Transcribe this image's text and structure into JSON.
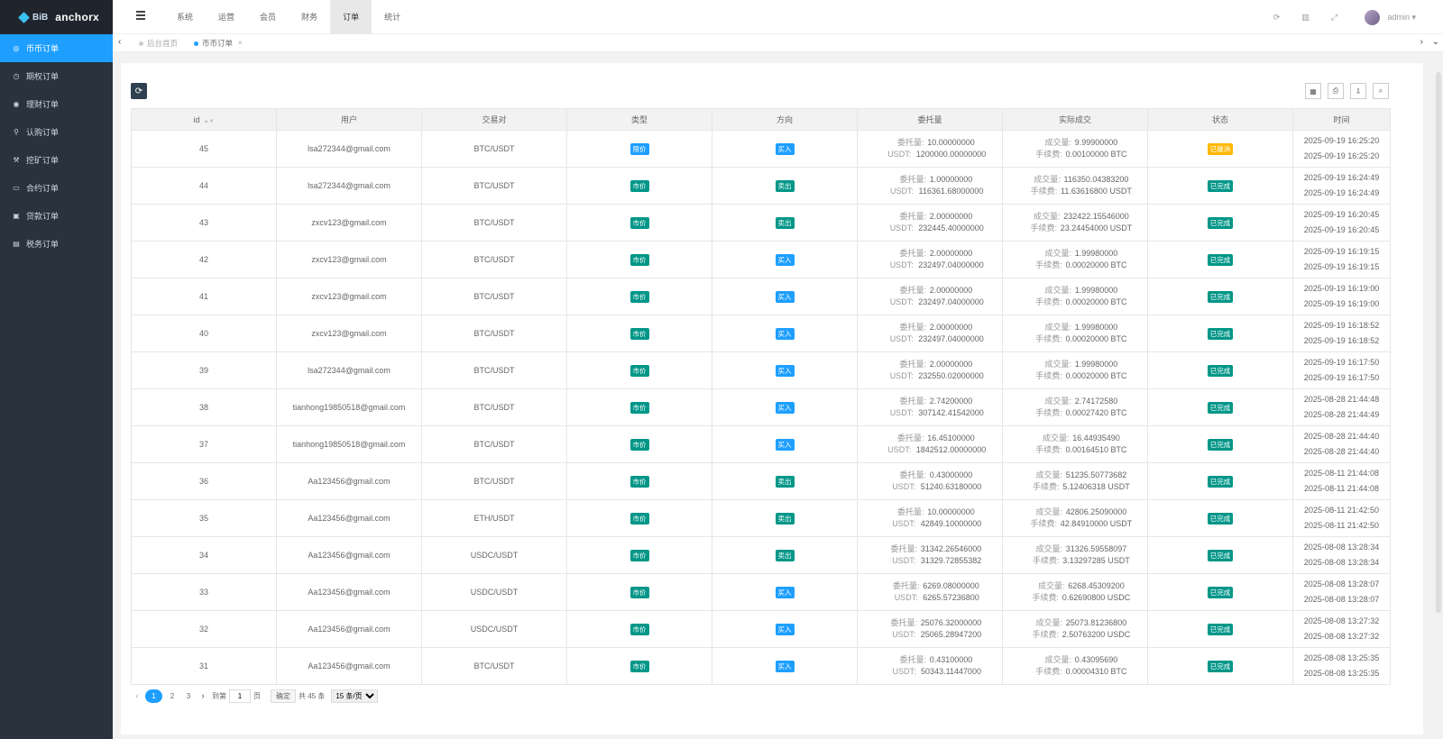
{
  "logo": {
    "mark": "BiB",
    "name": "anchorx"
  },
  "sidebar": {
    "items": [
      {
        "label": "币币订单",
        "icon": "coin-icon",
        "glyph": "◎"
      },
      {
        "label": "期权订单",
        "icon": "clock-icon",
        "glyph": "◷"
      },
      {
        "label": "理财订单",
        "icon": "finance-icon",
        "glyph": "◉"
      },
      {
        "label": "认购订单",
        "icon": "person-icon",
        "glyph": "⚲"
      },
      {
        "label": "挖矿订单",
        "icon": "mining-icon",
        "glyph": "⚒"
      },
      {
        "label": "合约订单",
        "icon": "monitor-icon",
        "glyph": "▭"
      },
      {
        "label": "贷款订单",
        "icon": "loan-icon",
        "glyph": "▣"
      },
      {
        "label": "税务订单",
        "icon": "tax-icon",
        "glyph": "▤"
      }
    ]
  },
  "topnav": [
    "系统",
    "运营",
    "会员",
    "财务",
    "订单",
    "统计"
  ],
  "header": {
    "user": "admin ▾"
  },
  "tabs": {
    "home": "后台首页",
    "current": "币币订单",
    "close": "×"
  },
  "table": {
    "columns": [
      "id",
      "用户",
      "交易对",
      "类型",
      "方向",
      "委托量",
      "实际成交",
      "状态",
      "时间"
    ],
    "keys": {
      "entrust": "委托量:",
      "usdt": "USDT:",
      "filled": "成交量:",
      "fee": "手续费:"
    },
    "rows": [
      {
        "id": "45",
        "user": "lsa272344@gmail.com",
        "pair": "BTC/USDT",
        "type": "限价",
        "dir": "买入",
        "e1": "10.00000000",
        "e2": "1200000.00000000",
        "f1": "9.99900000",
        "f2": "0.00100000 BTC",
        "status": "已撤消",
        "t1": "2025-09-19 16:25:20",
        "t2": "2025-09-19 16:25:20"
      },
      {
        "id": "44",
        "user": "lsa272344@gmail.com",
        "pair": "BTC/USDT",
        "type": "市价",
        "dir": "卖出",
        "e1": "1.00000000",
        "e2": "116361.68000000",
        "f1": "116350.04383200",
        "f2": "11.63616800 USDT",
        "status": "已完成",
        "t1": "2025-09-19 16:24:49",
        "t2": "2025-09-19 16:24:49"
      },
      {
        "id": "43",
        "user": "zxcv123@gmail.com",
        "pair": "BTC/USDT",
        "type": "市价",
        "dir": "卖出",
        "e1": "2.00000000",
        "e2": "232445.40000000",
        "f1": "232422.15546000",
        "f2": "23.24454000 USDT",
        "status": "已完成",
        "t1": "2025-09-19 16:20:45",
        "t2": "2025-09-19 16:20:45"
      },
      {
        "id": "42",
        "user": "zxcv123@gmail.com",
        "pair": "BTC/USDT",
        "type": "市价",
        "dir": "买入",
        "e1": "2.00000000",
        "e2": "232497.04000000",
        "f1": "1.99980000",
        "f2": "0.00020000 BTC",
        "status": "已完成",
        "t1": "2025-09-19 16:19:15",
        "t2": "2025-09-19 16:19:15"
      },
      {
        "id": "41",
        "user": "zxcv123@gmail.com",
        "pair": "BTC/USDT",
        "type": "市价",
        "dir": "买入",
        "e1": "2.00000000",
        "e2": "232497.04000000",
        "f1": "1.99980000",
        "f2": "0.00020000 BTC",
        "status": "已完成",
        "t1": "2025-09-19 16:19:00",
        "t2": "2025-09-19 16:19:00"
      },
      {
        "id": "40",
        "user": "zxcv123@gmail.com",
        "pair": "BTC/USDT",
        "type": "市价",
        "dir": "买入",
        "e1": "2.00000000",
        "e2": "232497.04000000",
        "f1": "1.99980000",
        "f2": "0.00020000 BTC",
        "status": "已完成",
        "t1": "2025-09-19 16:18:52",
        "t2": "2025-09-19 16:18:52"
      },
      {
        "id": "39",
        "user": "lsa272344@gmail.com",
        "pair": "BTC/USDT",
        "type": "市价",
        "dir": "买入",
        "e1": "2.00000000",
        "e2": "232550.02000000",
        "f1": "1.99980000",
        "f2": "0.00020000 BTC",
        "status": "已完成",
        "t1": "2025-09-19 16:17:50",
        "t2": "2025-09-19 16:17:50"
      },
      {
        "id": "38",
        "user": "tianhong19850518@gmail.com",
        "pair": "BTC/USDT",
        "type": "市价",
        "dir": "买入",
        "e1": "2.74200000",
        "e2": "307142.41542000",
        "f1": "2.74172580",
        "f2": "0.00027420 BTC",
        "status": "已完成",
        "t1": "2025-08-28 21:44:48",
        "t2": "2025-08-28 21:44:49"
      },
      {
        "id": "37",
        "user": "tianhong19850518@gmail.com",
        "pair": "BTC/USDT",
        "type": "市价",
        "dir": "买入",
        "e1": "16.45100000",
        "e2": "1842512.00000000",
        "f1": "16.44935490",
        "f2": "0.00164510 BTC",
        "status": "已完成",
        "t1": "2025-08-28 21:44:40",
        "t2": "2025-08-28 21:44:40"
      },
      {
        "id": "36",
        "user": "Aa123456@gmail.com",
        "pair": "BTC/USDT",
        "type": "市价",
        "dir": "卖出",
        "e1": "0.43000000",
        "e2": "51240.63180000",
        "f1": "51235.50773682",
        "f2": "5.12406318 USDT",
        "status": "已完成",
        "t1": "2025-08-11 21:44:08",
        "t2": "2025-08-11 21:44:08"
      },
      {
        "id": "35",
        "user": "Aa123456@gmail.com",
        "pair": "ETH/USDT",
        "type": "市价",
        "dir": "卖出",
        "e1": "10.00000000",
        "e2": "42849.10000000",
        "f1": "42806.25090000",
        "f2": "42.84910000 USDT",
        "status": "已完成",
        "t1": "2025-08-11 21:42:50",
        "t2": "2025-08-11 21:42:50"
      },
      {
        "id": "34",
        "user": "Aa123456@gmail.com",
        "pair": "USDC/USDT",
        "type": "市价",
        "dir": "卖出",
        "e1": "31342.26546000",
        "e2": "31329.72855382",
        "f1": "31326.59558097",
        "f2": "3.13297285 USDT",
        "status": "已完成",
        "t1": "2025-08-08 13:28:34",
        "t2": "2025-08-08 13:28:34"
      },
      {
        "id": "33",
        "user": "Aa123456@gmail.com",
        "pair": "USDC/USDT",
        "type": "市价",
        "dir": "买入",
        "e1": "6269.08000000",
        "e2": "6265.57236800",
        "f1": "6268.45309200",
        "f2": "0.62690800 USDC",
        "status": "已完成",
        "t1": "2025-08-08 13:28:07",
        "t2": "2025-08-08 13:28:07"
      },
      {
        "id": "32",
        "user": "Aa123456@gmail.com",
        "pair": "USDC/USDT",
        "type": "市价",
        "dir": "买入",
        "e1": "25076.32000000",
        "e2": "25065.28947200",
        "f1": "25073.81236800",
        "f2": "2.50763200 USDC",
        "status": "已完成",
        "t1": "2025-08-08 13:27:32",
        "t2": "2025-08-08 13:27:32"
      },
      {
        "id": "31",
        "user": "Aa123456@gmail.com",
        "pair": "BTC/USDT",
        "type": "市价",
        "dir": "买入",
        "e1": "0.43100000",
        "e2": "50343.11447000",
        "f1": "0.43095690",
        "f2": "0.00004310 BTC",
        "status": "已完成",
        "t1": "2025-08-08 13:25:35",
        "t2": "2025-08-08 13:25:35"
      }
    ]
  },
  "pager": {
    "pages": [
      "1",
      "2",
      "3"
    ],
    "goto_label": "到第",
    "goto_value": "1",
    "page_unit": "页",
    "confirm": "确定",
    "total": "共 45 条",
    "per_page": "15 条/页"
  }
}
